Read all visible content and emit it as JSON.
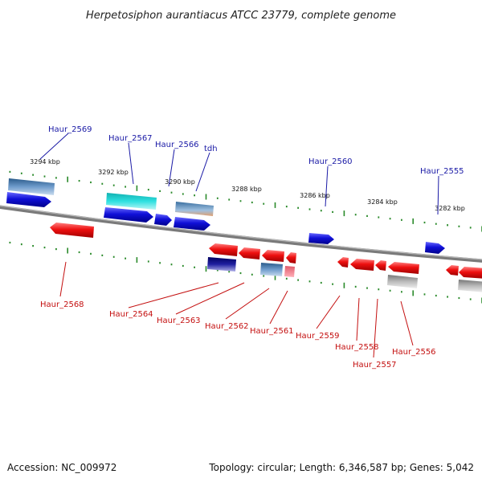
{
  "title": "Herpetosiphon aurantiacus ATCC 23779, complete genome",
  "footer": {
    "accession": "Accession: NC_009972",
    "topology": "Topology: circular; Length: 6,346,587 bp; Genes: 5,042"
  },
  "scale_labels": [
    "3294 kbp",
    "3292 kbp",
    "3290 kbp",
    "3288 kbp",
    "3286 kbp",
    "3284 kbp",
    "3282 kbp"
  ],
  "genes_top": [
    "Haur_2569",
    "Haur_2567",
    "Haur_2566",
    "tdh",
    "Haur_2560",
    "Haur_2555"
  ],
  "genes_bottom": [
    "Haur_2568",
    "Haur_2564",
    "Haur_2563",
    "Haur_2562",
    "Haur_2561",
    "Haur_2559",
    "Haur_2558",
    "Haur_2557",
    "Haur_2556"
  ],
  "colors": {
    "forward_gene": "#1010d8",
    "reverse_gene": "#ee1010",
    "top_label": "#1a1aa6",
    "bottom_label": "#c41010",
    "backbone": "#808080",
    "tick": "#2a8a2a"
  }
}
